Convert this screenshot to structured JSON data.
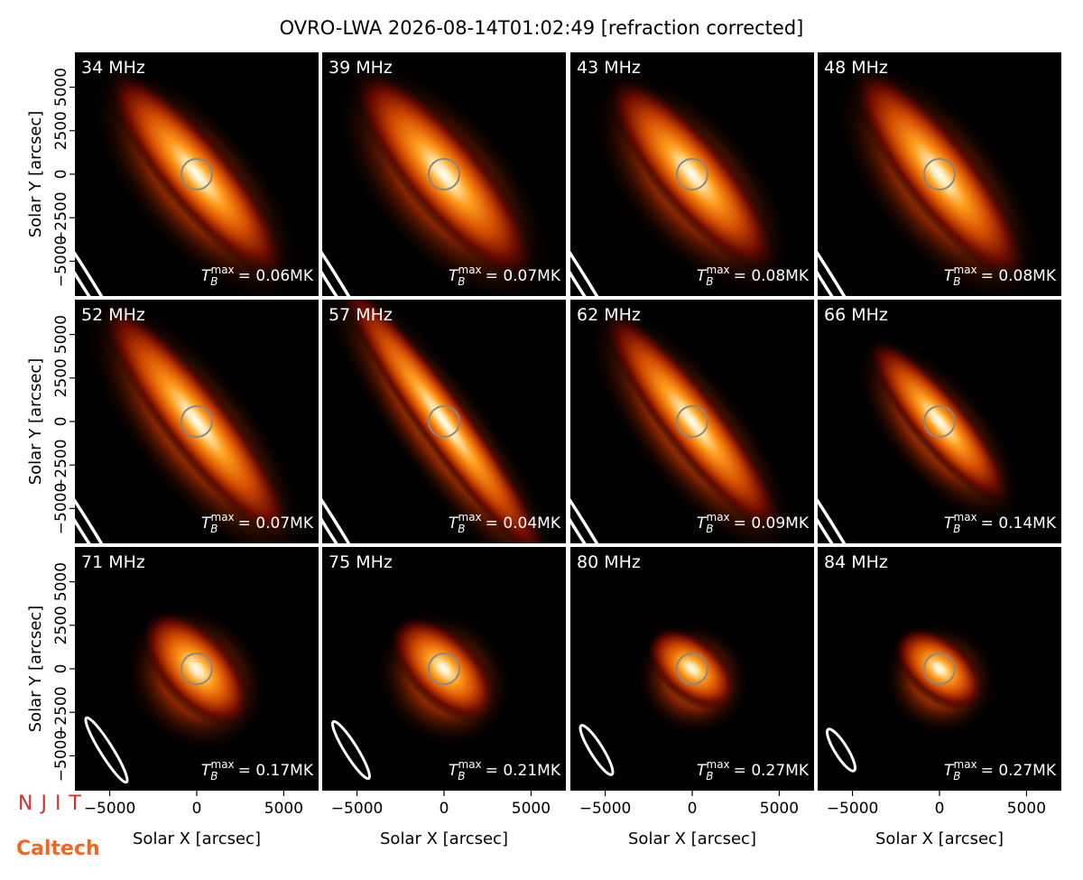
{
  "chart_data": {
    "type": "image-grid",
    "title": "OVRO-LWA 2026-08-14T01:02:49 [refraction corrected]",
    "xlabel": "Solar X [arcsec]",
    "ylabel": "Solar Y [arcsec]",
    "xlim": [
      -7000,
      7000
    ],
    "ylim": [
      -7000,
      7000
    ],
    "xticks": [
      {
        "value": -5000,
        "label": "−5000"
      },
      0,
      5000
    ],
    "yticks": [
      {
        "value": -5000,
        "label": "−5000"
      },
      {
        "value": -2500,
        "label": "−2500"
      },
      0,
      2500,
      5000
    ],
    "tmax_symbol": {
      "base": "T",
      "sub": "B",
      "sup": "max"
    },
    "panels": [
      {
        "frequency": "34 MHz",
        "tmax_label": "= 0.06MK"
      },
      {
        "frequency": "39 MHz",
        "tmax_label": "= 0.07MK"
      },
      {
        "frequency": "43 MHz",
        "tmax_label": "= 0.08MK"
      },
      {
        "frequency": "48 MHz",
        "tmax_label": "= 0.08MK"
      },
      {
        "frequency": "52 MHz",
        "tmax_label": "= 0.07MK"
      },
      {
        "frequency": "57 MHz",
        "tmax_label": "= 0.04MK"
      },
      {
        "frequency": "62 MHz",
        "tmax_label": "= 0.09MK"
      },
      {
        "frequency": "66 MHz",
        "tmax_label": "= 0.14MK"
      },
      {
        "frequency": "71 MHz",
        "tmax_label": "= 0.17MK"
      },
      {
        "frequency": "75 MHz",
        "tmax_label": "= 0.21MK"
      },
      {
        "frequency": "80 MHz",
        "tmax_label": "= 0.27MK"
      },
      {
        "frequency": "84 MHz",
        "tmax_label": "= 0.27MK"
      }
    ],
    "logos": [
      "NJIT",
      "Caltech"
    ]
  }
}
